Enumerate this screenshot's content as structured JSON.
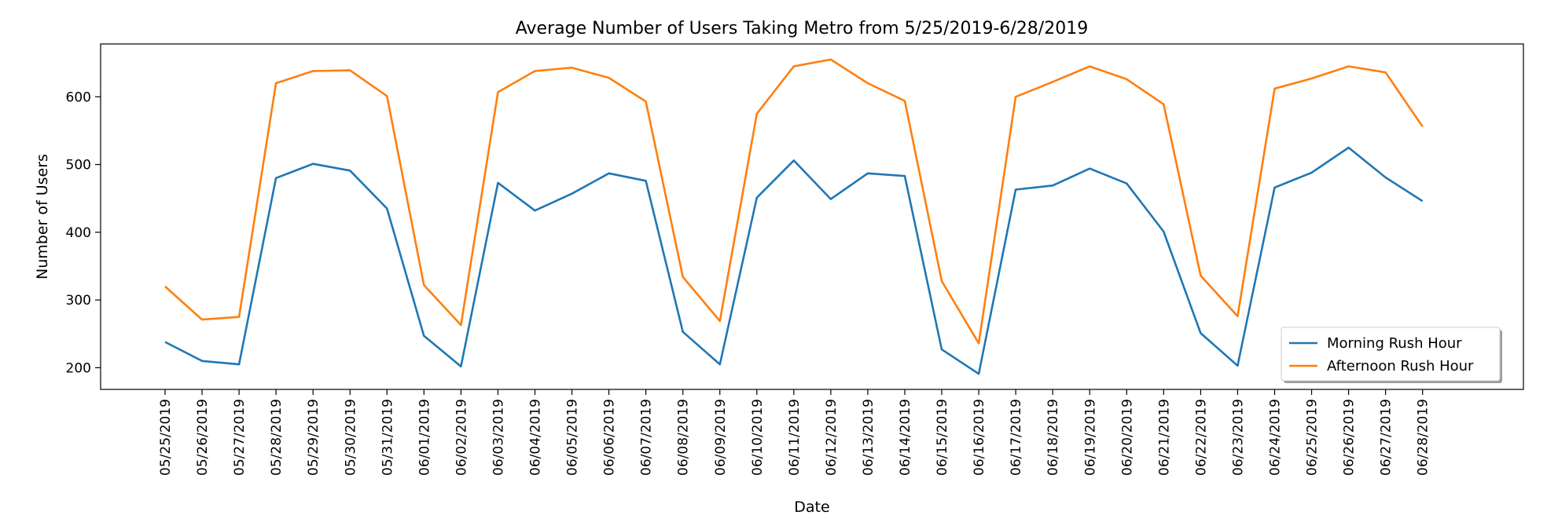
{
  "chart_data": {
    "type": "line",
    "title": "Average Number of Users Taking Metro from 5/25/2019-6/28/2019",
    "xlabel": "Date",
    "ylabel": "Number of Users",
    "ylim": [
      168,
      678
    ],
    "yticks": [
      200,
      300,
      400,
      500,
      600
    ],
    "grid": false,
    "legend_position": "bottom-right",
    "categories": [
      "05/25/2019",
      "05/26/2019",
      "05/27/2019",
      "05/28/2019",
      "05/29/2019",
      "05/30/2019",
      "05/31/2019",
      "06/01/2019",
      "06/02/2019",
      "06/03/2019",
      "06/04/2019",
      "06/05/2019",
      "06/06/2019",
      "06/07/2019",
      "06/08/2019",
      "06/09/2019",
      "06/10/2019",
      "06/11/2019",
      "06/12/2019",
      "06/13/2019",
      "06/14/2019",
      "06/15/2019",
      "06/16/2019",
      "06/17/2019",
      "06/18/2019",
      "06/19/2019",
      "06/20/2019",
      "06/21/2019",
      "06/22/2019",
      "06/23/2019",
      "06/24/2019",
      "06/25/2019",
      "06/26/2019",
      "06/27/2019",
      "06/28/2019"
    ],
    "series": [
      {
        "name": "Morning Rush Hour",
        "color": "#1f77b4",
        "values": [
          238,
          210,
          205,
          480,
          501,
          491,
          435,
          247,
          202,
          473,
          432,
          457,
          487,
          476,
          253,
          205,
          451,
          506,
          449,
          487,
          483,
          227,
          191,
          463,
          469,
          494,
          472,
          401,
          251,
          203,
          466,
          488,
          525,
          481,
          446
        ]
      },
      {
        "name": "Afternoon Rush Hour",
        "color": "#ff7f0e",
        "values": [
          320,
          271,
          275,
          620,
          638,
          639,
          601,
          322,
          263,
          607,
          638,
          643,
          628,
          593,
          334,
          269,
          575,
          645,
          655,
          620,
          594,
          328,
          236,
          600,
          622,
          645,
          626,
          589,
          336,
          276,
          612,
          627,
          645,
          636,
          556
        ]
      }
    ]
  }
}
